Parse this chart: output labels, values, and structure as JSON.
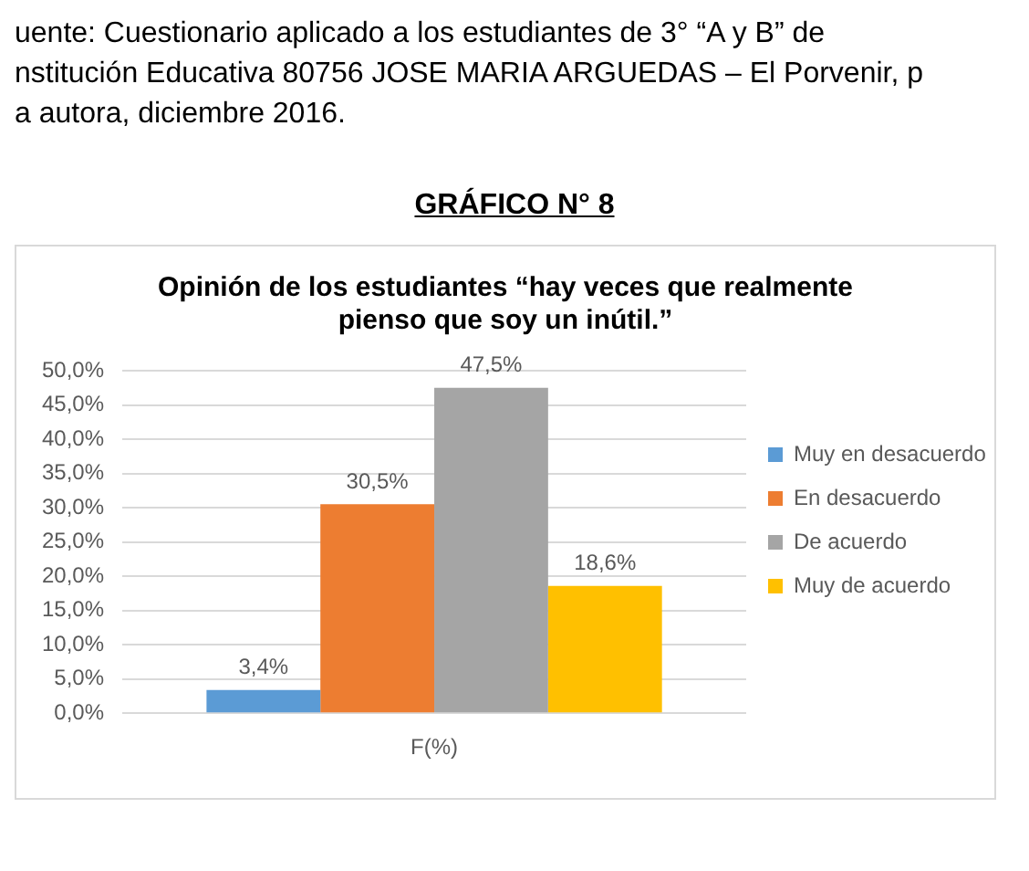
{
  "chart_data": {
    "type": "bar",
    "title": [
      "Opinión de los estudiantes “hay veces que realmente",
      "pienso que soy un inútil.”"
    ],
    "annotations": [
      "uente: Cuestionario aplicado a los estudiantes de 3° “A y B” de",
      "nstitución Educativa 80756 JOSE MARIA ARGUEDAS – El Porvenir, p",
      "a autora, diciembre 2016.",
      "GRÁFICO N° 8"
    ],
    "categories": [
      "F(%)"
    ],
    "series": [
      {
        "name": "Muy en desacuerdo",
        "color": "#5b9bd5",
        "values": [
          3.4
        ],
        "value_labels": [
          "3,4%"
        ]
      },
      {
        "name": "En desacuerdo",
        "color": "#ed7d31",
        "values": [
          30.5
        ],
        "value_labels": [
          "30,5%"
        ]
      },
      {
        "name": "De acuerdo",
        "color": "#a5a5a5",
        "values": [
          47.5
        ],
        "value_labels": [
          "47,5%"
        ]
      },
      {
        "name": "Muy de acuerdo",
        "color": "#ffc000",
        "values": [
          18.6
        ],
        "value_labels": [
          "18,6%"
        ]
      }
    ],
    "ylim": [
      0,
      50
    ],
    "yticks": [
      {
        "value": 0,
        "label": "0,0%"
      },
      {
        "value": 5,
        "label": "5,0%"
      },
      {
        "value": 10,
        "label": "10,0%"
      },
      {
        "value": 15,
        "label": "15,0%"
      },
      {
        "value": 20,
        "label": "20,0%"
      },
      {
        "value": 25,
        "label": "25,0%"
      },
      {
        "value": 30,
        "label": "30,0%"
      },
      {
        "value": 35,
        "label": "35,0%"
      },
      {
        "value": 40,
        "label": "40,0%"
      },
      {
        "value": 45,
        "label": "45,0%"
      },
      {
        "value": 50,
        "label": "50,0%"
      }
    ],
    "grid": "y",
    "legend": "right"
  }
}
